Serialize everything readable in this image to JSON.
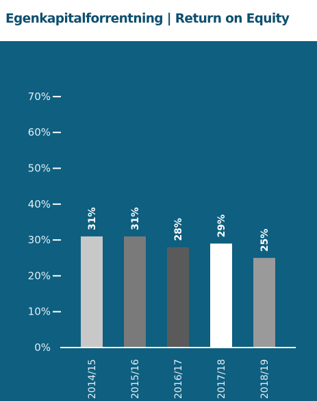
{
  "chart_data": {
    "type": "bar",
    "title": "Egenkapitalforrentning | Return on Equity",
    "categories": [
      "2014/15",
      "2015/16",
      "2016/17",
      "2017/18",
      "2018/19"
    ],
    "values": [
      31,
      31,
      28,
      29,
      25
    ],
    "value_labels": [
      "31%",
      "31%",
      "28%",
      "29%",
      "25%"
    ],
    "yticks": [
      0,
      10,
      20,
      30,
      40,
      50,
      60,
      70
    ],
    "ytick_labels": [
      "0%",
      "10%",
      "20%",
      "30%",
      "40%",
      "50%",
      "60%",
      "70%"
    ],
    "ylim": [
      0,
      70
    ],
    "grid": false,
    "legend": "none",
    "xlabel": "",
    "ylabel": ""
  },
  "colors": {
    "panel_background": "#0e5f80",
    "title_text": "#0d4f6e",
    "axis": "#ffffff",
    "bars": [
      "#c8c8c8",
      "#7a7a7a",
      "#5a5a5a",
      "#ffffff",
      "#9a9a9a"
    ]
  }
}
